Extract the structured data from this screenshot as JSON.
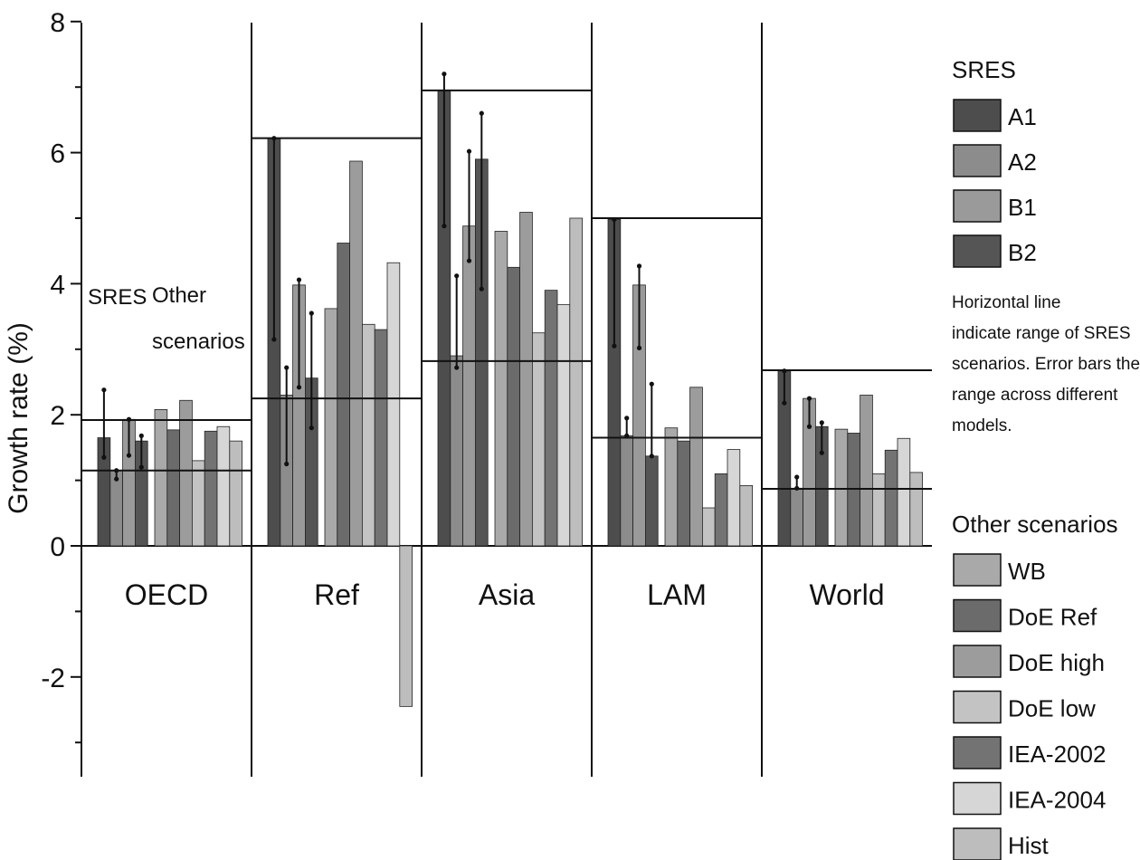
{
  "chart_data": {
    "type": "bar",
    "title": "",
    "ylabel": "Growth rate (%)",
    "ylim": [
      -3.5,
      8
    ],
    "y_ticks": [
      "8",
      "6",
      "4",
      "2",
      "0",
      "-2"
    ],
    "categories": [
      "OECD",
      "Ref",
      "Asia",
      "LAM",
      "World"
    ],
    "annotations": {
      "sres": "SRES",
      "other_line1": "Other",
      "other_line2": "scenarios"
    },
    "sres_series": [
      {
        "name": "A1",
        "color": "#4d4d4d",
        "values": [
          1.65,
          6.22,
          6.95,
          4.98,
          2.67
        ],
        "err_low": [
          1.35,
          3.15,
          4.88,
          3.05,
          2.18
        ],
        "err_high": [
          2.38,
          6.22,
          7.2,
          4.98,
          2.67
        ]
      },
      {
        "name": "A2",
        "color": "#8c8c8c",
        "values": [
          1.15,
          2.3,
          2.9,
          1.68,
          0.88
        ],
        "err_low": [
          1.02,
          1.25,
          2.72,
          1.68,
          0.88
        ],
        "err_high": [
          1.15,
          2.72,
          4.12,
          1.95,
          1.05
        ]
      },
      {
        "name": "B1",
        "color": "#9a9a9a",
        "values": [
          1.93,
          3.98,
          4.88,
          3.98,
          2.25
        ],
        "err_low": [
          1.38,
          2.42,
          4.35,
          3.02,
          1.82
        ],
        "err_high": [
          1.93,
          4.06,
          6.02,
          4.27,
          2.25
        ]
      },
      {
        "name": "B2",
        "color": "#555555",
        "values": [
          1.6,
          2.56,
          5.9,
          1.37,
          1.82
        ],
        "err_low": [
          1.2,
          1.8,
          3.92,
          1.37,
          1.42
        ],
        "err_high": [
          1.68,
          3.55,
          6.6,
          2.47,
          1.88
        ]
      }
    ],
    "sres_range": {
      "low": [
        1.15,
        2.25,
        2.82,
        1.65,
        0.87
      ],
      "high": [
        1.92,
        6.22,
        6.95,
        5.0,
        2.68
      ]
    },
    "other_series": [
      {
        "name": "WB",
        "color": "#a9a9a9",
        "values": [
          2.08,
          3.62,
          4.8,
          1.8,
          1.78
        ]
      },
      {
        "name": "DoE Ref",
        "color": "#6b6b6b",
        "values": [
          1.77,
          4.62,
          4.25,
          1.6,
          1.72
        ]
      },
      {
        "name": "DoE high",
        "color": "#9c9c9c",
        "values": [
          2.22,
          5.87,
          5.09,
          2.42,
          2.3
        ]
      },
      {
        "name": "DoE low",
        "color": "#c3c3c3",
        "values": [
          1.3,
          3.38,
          3.25,
          0.58,
          1.1
        ]
      },
      {
        "name": "IEA-2002",
        "color": "#737373",
        "values": [
          1.75,
          3.3,
          3.9,
          1.1,
          1.46
        ]
      },
      {
        "name": "IEA-2004",
        "color": "#d6d6d6",
        "values": [
          1.82,
          4.32,
          3.68,
          1.47,
          1.64
        ]
      },
      {
        "name": "Hist",
        "color": "#bdbdbd",
        "values": [
          1.6,
          -2.45,
          5.0,
          0.92,
          1.12
        ]
      }
    ],
    "legend": {
      "sres_title": "SRES",
      "other_title": "Other scenarios",
      "note_lines": [
        "Horizontal line",
        "indicate range of SRES",
        "scenarios. Error bars the",
        "range across different",
        "models."
      ],
      "position": "right"
    }
  }
}
